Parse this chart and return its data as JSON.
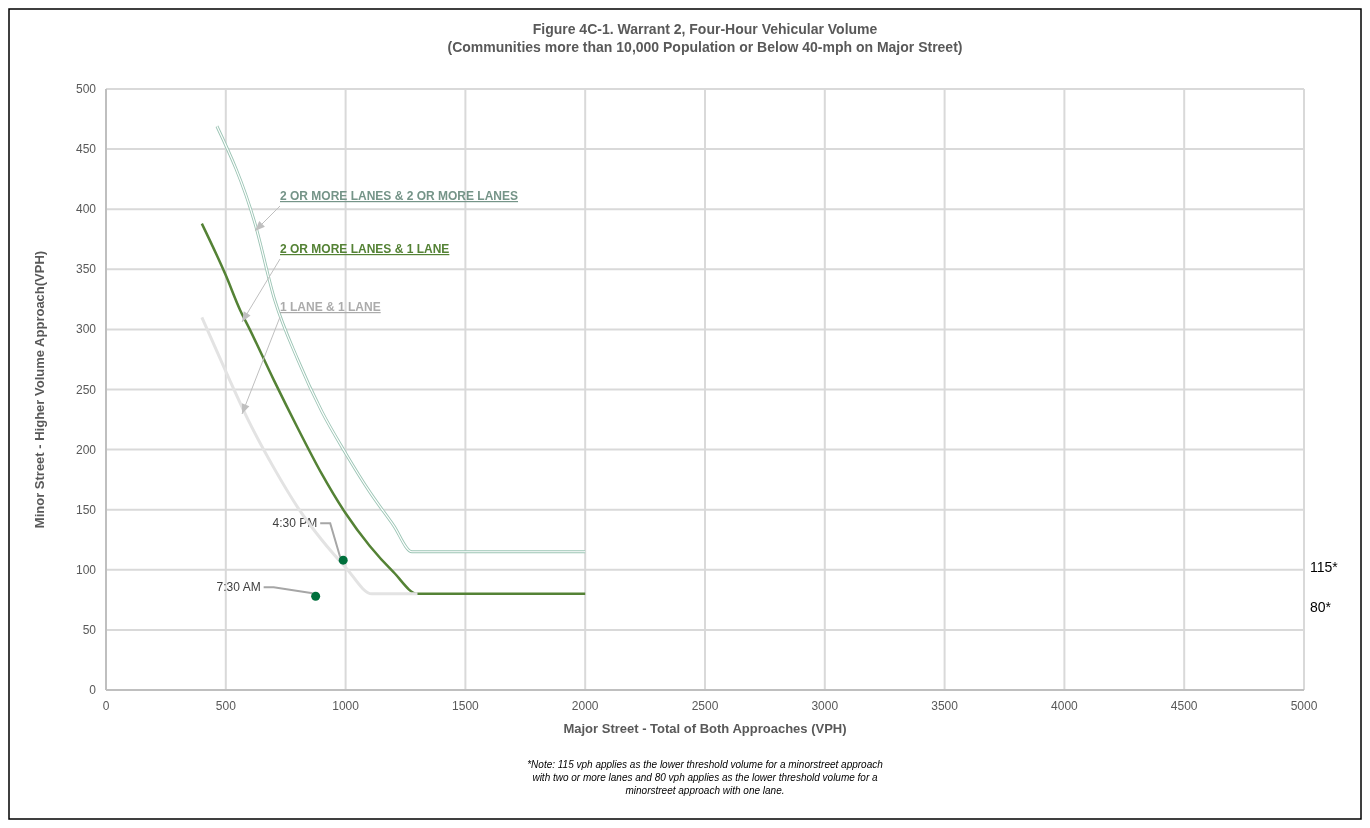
{
  "chart_data": {
    "type": "line",
    "title": "Figure 4C-1. Warrant 2, Four-Hour Vehicular Volume",
    "subtitle": "(Communities more than 10,000 Population or Below 40-mph on Major Street)",
    "xlabel": "Major Street - Total of Both Approaches  (VPH)",
    "ylabel": "Minor Street - Higher Volume Approach(VPH)",
    "xlim": [
      0,
      5000
    ],
    "xticks": [
      0,
      500,
      1000,
      1500,
      2000,
      2500,
      3000,
      3500,
      4000,
      4500,
      5000
    ],
    "ylim": [
      0,
      500
    ],
    "yticks": [
      0,
      50,
      100,
      150,
      200,
      250,
      300,
      350,
      400,
      450,
      500
    ],
    "grid": true,
    "series": [
      {
        "name": "2 OR MORE LANES & 2 OR MORE LANES",
        "color": "#9cc5b5",
        "x": [
          463,
          622,
          705,
          800,
          900,
          1000,
          1100,
          1200,
          1277,
          2000
        ],
        "values": [
          469,
          388,
          324,
          275,
          232,
          197,
          165,
          137,
          115,
          115
        ]
      },
      {
        "name": "2 OR MORE LANES & 1 LANE",
        "color": "#548235",
        "x": [
          400,
          500,
          560,
          600,
          700,
          800,
          900,
          1000,
          1100,
          1200,
          1300,
          2000
        ],
        "values": [
          388,
          345,
          316,
          300,
          258,
          218,
          180,
          147,
          120,
          98,
          80,
          80
        ]
      },
      {
        "name": "1 LANE & 1 LANE",
        "color": "#e3e3e3",
        "x": [
          400,
          500,
          600,
          700,
          800,
          900,
          1000,
          1110,
          1300
        ],
        "values": [
          310,
          265,
          222,
          185,
          152,
          125,
          102,
          80,
          80
        ]
      },
      {
        "type": "scatter",
        "marker": "circle",
        "color": "#00703c",
        "x": [
          875,
          990
        ],
        "values": [
          78,
          108
        ]
      }
    ],
    "annotations": [
      {
        "text": "7:30 AM",
        "x": 875,
        "y": 78
      },
      {
        "text": "4:30 PM",
        "x": 990,
        "y": 108
      },
      "115*",
      "80*",
      "*Note: 115 vph applies as the lower threshold volume for a minorstreet approach with two or more lanes and 80 vph applies as the lower threshold volume for a minorstreet approach with one lane."
    ]
  }
}
